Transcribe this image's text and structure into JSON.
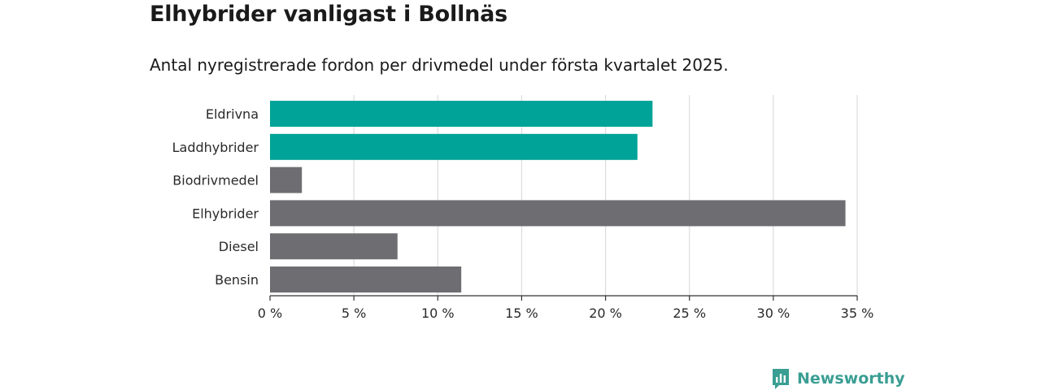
{
  "header": {
    "title": "Elhybrider vanligast i Bollnäs",
    "subtitle": "Antal nyregistrerade fordon per drivmedel under första kvartalet 2025."
  },
  "chart_data": {
    "type": "bar",
    "orientation": "horizontal",
    "categories": [
      "Eldrivna",
      "Laddhybrider",
      "Biodrivmedel",
      "Elhybrider",
      "Diesel",
      "Bensin"
    ],
    "values": [
      22.8,
      21.9,
      1.9,
      34.3,
      7.6,
      11.4
    ],
    "colors": [
      "#00a398",
      "#00a398",
      "#6e6d72",
      "#6e6d72",
      "#6e6d72",
      "#6e6d72"
    ],
    "xlim": [
      0,
      35
    ],
    "xticks": [
      0,
      5,
      10,
      15,
      20,
      25,
      30,
      35
    ],
    "xtick_labels": [
      "0 %",
      "5 %",
      "10 %",
      "15 %",
      "20 %",
      "25 %",
      "30 %",
      "35 %"
    ],
    "grid": "vertical",
    "xlabel": "",
    "ylabel": ""
  },
  "brand": {
    "name": "Newsworthy",
    "icon": "newsworthy-logo-icon",
    "color": "#3a9e93"
  }
}
